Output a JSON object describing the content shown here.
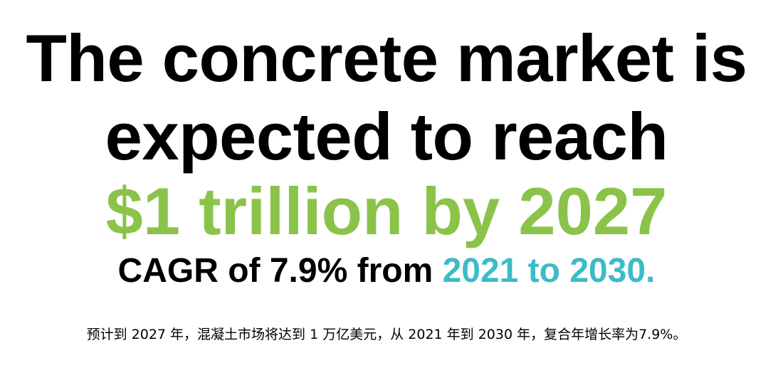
{
  "headline": {
    "line1": "The concrete market is",
    "line2": "expected to reach",
    "highlight": "$1 trillion by 2027",
    "cagr_prefix": "CAGR of 7.9% from ",
    "cagr_range": "2021 to 2030."
  },
  "subtitle": "预计到 2027 年，混凝土市场将达到 1 万亿美元，从 2021 年到 2030 年，复合年增长率为7.9%。",
  "colors": {
    "text": "#000000",
    "highlight_green": "#8bc34a",
    "accent_teal": "#3dbbc8",
    "background": "#ffffff"
  }
}
